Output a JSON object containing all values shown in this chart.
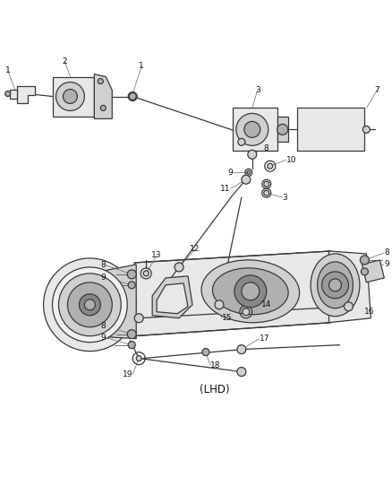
{
  "bg_color": "#ffffff",
  "lc": "#3a3a3a",
  "lc_light": "#888888",
  "fill_light": "#e8e8e8",
  "fill_mid": "#d0d0d0",
  "fill_dark": "#b0b0b0",
  "lw_main": 0.9,
  "lw_thin": 0.5,
  "label_size": 6.5,
  "lhd_size": 8.5,
  "label_color": "#111111",
  "figsize": [
    4.38,
    5.33
  ],
  "dpi": 100
}
